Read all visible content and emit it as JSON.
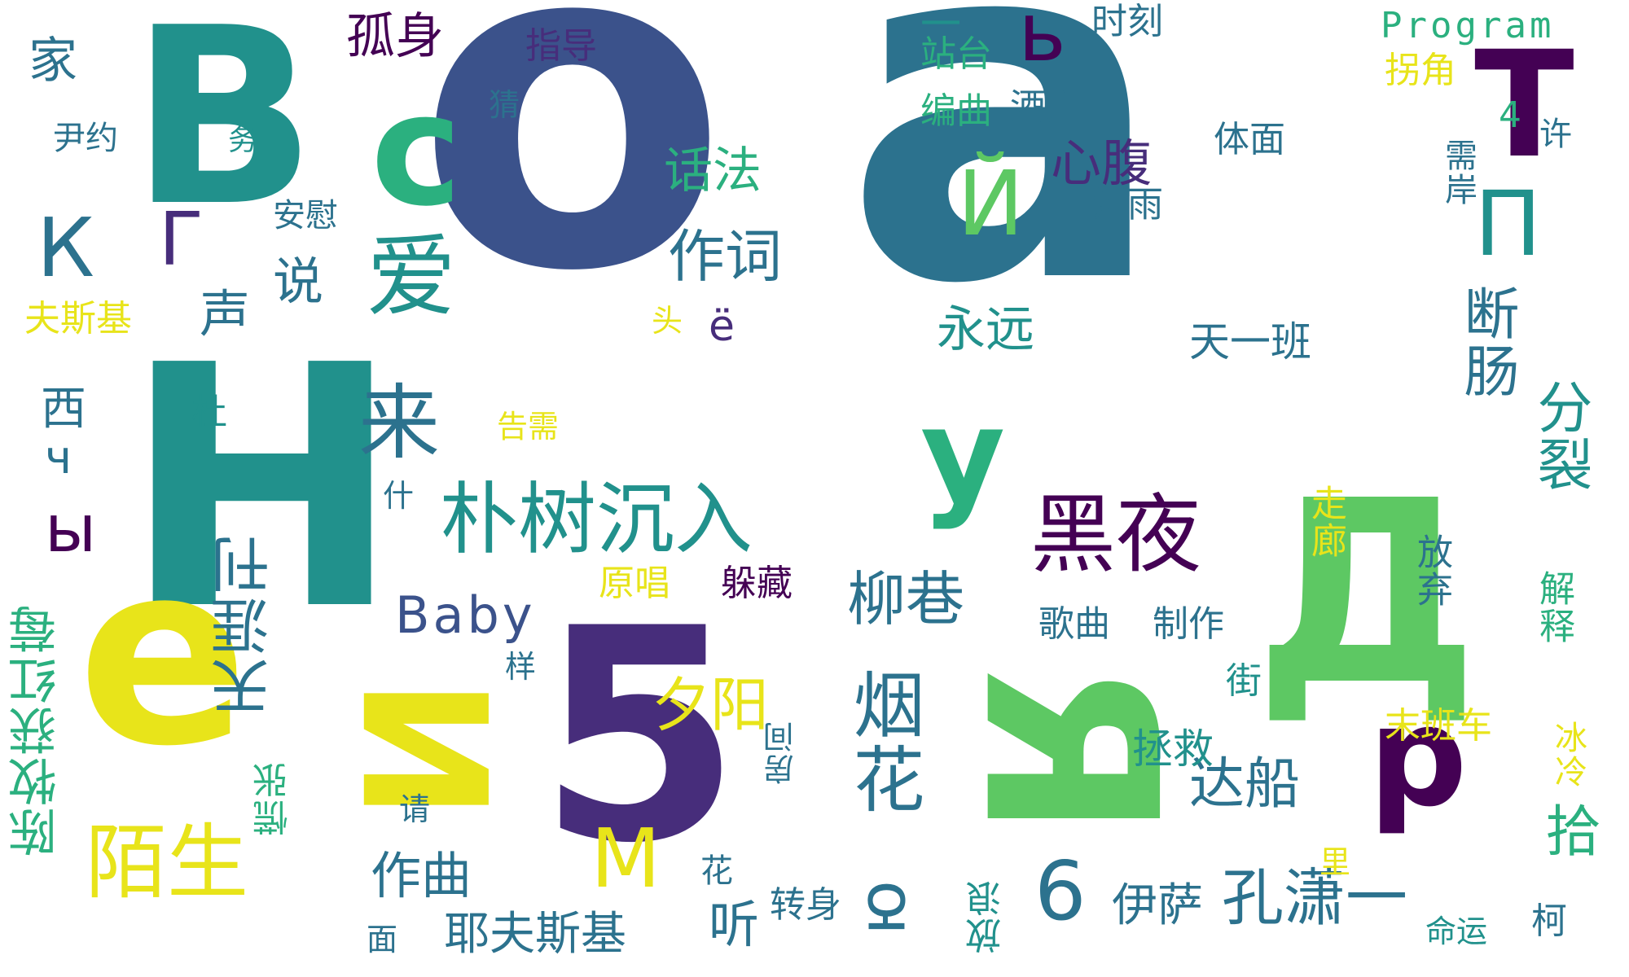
{
  "palette": {
    "yellow": "#e8e41a",
    "yellow_green": "#9bd93c",
    "green": "#5dc863",
    "aqua_green": "#2bb07f",
    "teal": "#21918c",
    "teal_blue": "#2c728e",
    "blue": "#3b528b",
    "indigo": "#472d7b",
    "dark_purple": "#440154"
  },
  "words": [
    {
      "id": "o",
      "text": "o",
      "color": "blue"
    },
    {
      "id": "a",
      "text": "a",
      "color": "teal_blue"
    },
    {
      "id": "H",
      "text": "H",
      "color": "teal"
    },
    {
      "id": "B",
      "text": "B",
      "color": "teal"
    },
    {
      "id": "e",
      "text": "e",
      "color": "yellow"
    },
    {
      "id": "five",
      "text": "5",
      "color": "indigo"
    },
    {
      "id": "de",
      "text": "Д",
      "color": "green"
    },
    {
      "id": "ya",
      "text": "Я",
      "color": "green"
    },
    {
      "id": "i_cyr",
      "text": "И",
      "color": "yellow"
    },
    {
      "id": "c",
      "text": "c",
      "color": "aqua_green"
    },
    {
      "id": "T",
      "text": "T",
      "color": "dark_purple"
    },
    {
      "id": "y",
      "text": "y",
      "color": "aqua_green"
    },
    {
      "id": "p",
      "text": "p",
      "color": "dark_purple"
    },
    {
      "id": "heiye",
      "text": "黑夜",
      "color": "dark_purple"
    },
    {
      "id": "pushu",
      "text": "朴树沉入",
      "color": "teal"
    },
    {
      "id": "mosheng",
      "text": "陌生",
      "color": "yellow"
    },
    {
      "id": "zuoci",
      "text": "作词",
      "color": "teal_blue"
    },
    {
      "id": "huafa",
      "text": "话法",
      "color": "aqua_green"
    },
    {
      "id": "xinfu",
      "text": "心腹",
      "color": "indigo"
    },
    {
      "id": "gushen",
      "text": "孤身",
      "color": "dark_purple"
    },
    {
      "id": "zhidao",
      "text": "指导",
      "color": "indigo"
    },
    {
      "id": "shike",
      "text": "时刻",
      "color": "teal_blue"
    },
    {
      "id": "program",
      "text": "Program",
      "color": "aqua_green"
    },
    {
      "id": "yi_top",
      "text": "一",
      "color": "teal"
    },
    {
      "id": "zhantai",
      "text": "站台",
      "color": "aqua_green"
    },
    {
      "id": "b_small",
      "text": "ь",
      "color": "dark_purple"
    },
    {
      "id": "bianqu",
      "text": "编曲",
      "color": "aqua_green"
    },
    {
      "id": "jiudian",
      "text": "酒店",
      "color": "teal_blue"
    },
    {
      "id": "guaijiao",
      "text": "拐角",
      "color": "yellow"
    },
    {
      "id": "tian",
      "text": "天",
      "color": "teal_blue"
    },
    {
      "id": "ti",
      "text": "体面",
      "color": "teal_blue"
    },
    {
      "id": "leiyu",
      "text": "泪雨",
      "color": "teal_blue"
    },
    {
      "id": "yongyuan",
      "text": "永远",
      "color": "teal"
    },
    {
      "id": "tianyiban",
      "text": "天一班",
      "color": "teal_blue"
    },
    {
      "id": "duanchang",
      "text": "断肠",
      "color": "teal_blue"
    },
    {
      "id": "fenlie",
      "text": "分裂",
      "color": "teal"
    },
    {
      "id": "ij",
      "text": "Й",
      "color": "green"
    },
    {
      "id": "pi",
      "text": "П",
      "color": "teal"
    },
    {
      "id": "jia",
      "text": "家",
      "color": "teal_blue"
    },
    {
      "id": "yinyue",
      "text": "尹约",
      "color": "teal_blue"
    },
    {
      "id": "wu",
      "text": "务",
      "color": "teal"
    },
    {
      "id": "cai",
      "text": "猜",
      "color": "teal_blue"
    },
    {
      "id": "ka",
      "text": "К",
      "color": "teal_blue"
    },
    {
      "id": "ge",
      "text": "Г",
      "color": "indigo"
    },
    {
      "id": "anwei",
      "text": "安慰",
      "color": "teal_blue"
    },
    {
      "id": "ai",
      "text": "爱",
      "color": "teal"
    },
    {
      "id": "sheng",
      "text": "声",
      "color": "teal_blue"
    },
    {
      "id": "shuo",
      "text": "说",
      "color": "teal_blue"
    },
    {
      "id": "fusiji",
      "text": "夫斯基",
      "color": "yellow"
    },
    {
      "id": "xi",
      "text": "西",
      "color": "teal_blue"
    },
    {
      "id": "ch",
      "text": "ч",
      "color": "teal_blue"
    },
    {
      "id": "yery",
      "text": "ы",
      "color": "dark_purple"
    },
    {
      "id": "du",
      "text": "杜",
      "color": "teal"
    },
    {
      "id": "gaobie",
      "text": "告需",
      "color": "yellow"
    },
    {
      "id": "shen",
      "text": "什",
      "color": "teal_blue"
    },
    {
      "id": "lai",
      "text": "来",
      "color": "teal_blue"
    },
    {
      "id": "tianyazhi",
      "text": "天涯刊",
      "color": "teal_blue"
    },
    {
      "id": "baby",
      "text": "Baby",
      "color": "blue"
    },
    {
      "id": "yuanchang",
      "text": "原唱",
      "color": "yellow"
    },
    {
      "id": "duocang",
      "text": "躲藏",
      "color": "dark_purple"
    },
    {
      "id": "liuxiang",
      "text": "柳巷",
      "color": "teal_blue"
    },
    {
      "id": "gequ",
      "text": "歌曲",
      "color": "teal_blue"
    },
    {
      "id": "zhizuo",
      "text": "制作",
      "color": "teal_blue"
    },
    {
      "id": "zoulang",
      "text": "走廊",
      "color": "yellow"
    },
    {
      "id": "fangqi",
      "text": "放弃",
      "color": "teal_blue"
    },
    {
      "id": "jieshi",
      "text": "解释",
      "color": "aqua_green"
    },
    {
      "id": "xuyan",
      "text": "需岸",
      "color": "teal_blue"
    },
    {
      "id": "four",
      "text": "4",
      "color": "aqua_green"
    },
    {
      "id": "xu",
      "text": "许",
      "color": "teal_blue"
    },
    {
      "id": "xiyang",
      "text": "夕阳",
      "color": "yellow"
    },
    {
      "id": "yanhua",
      "text": "烟花",
      "color": "teal_blue"
    },
    {
      "id": "dachuan",
      "text": "达船",
      "color": "teal_blue"
    },
    {
      "id": "shi",
      "text": "拾",
      "color": "aqua_green"
    },
    {
      "id": "mobanche",
      "text": "末班车",
      "color": "yellow"
    },
    {
      "id": "zhengjiu",
      "text": "拯救",
      "color": "teal"
    },
    {
      "id": "bingleng",
      "text": "冰冷",
      "color": "yellow"
    },
    {
      "id": "jie",
      "text": "街",
      "color": "teal"
    },
    {
      "id": "yang",
      "text": "样",
      "color": "teal_blue"
    },
    {
      "id": "chenmu",
      "text": "陈牧获红莓",
      "color": "aqua_green"
    },
    {
      "id": "huangzhang",
      "text": "慌张",
      "color": "aqua_green"
    },
    {
      "id": "qing",
      "text": "请",
      "color": "teal_blue"
    },
    {
      "id": "fangjian",
      "text": "房间",
      "color": "teal_blue"
    },
    {
      "id": "M",
      "text": "M",
      "color": "yellow"
    },
    {
      "id": "hua",
      "text": "花",
      "color": "teal_blue"
    },
    {
      "id": "zuoqu",
      "text": "作曲",
      "color": "teal_blue"
    },
    {
      "id": "yu",
      "text": "ю",
      "color": "teal_blue"
    },
    {
      "id": "six",
      "text": "6",
      "color": "teal_blue"
    },
    {
      "id": "yisa",
      "text": "伊萨",
      "color": "teal_blue"
    },
    {
      "id": "kongxiaoyi",
      "text": "孔潇一",
      "color": "teal_blue"
    },
    {
      "id": "li",
      "text": "里",
      "color": "yellow"
    },
    {
      "id": "mingyun",
      "text": "命运",
      "color": "teal"
    },
    {
      "id": "ke",
      "text": "柯",
      "color": "teal_blue"
    },
    {
      "id": "yefusiji",
      "text": "耶夫斯基",
      "color": "teal_blue"
    },
    {
      "id": "ting",
      "text": "听",
      "color": "teal_blue"
    },
    {
      "id": "zhuanshen",
      "text": "转身",
      "color": "teal_blue"
    },
    {
      "id": "fanglang",
      "text": "放浪",
      "color": "teal"
    },
    {
      "id": "mian",
      "text": "面",
      "color": "teal_blue"
    },
    {
      "id": "tou",
      "text": "头",
      "color": "yellow"
    },
    {
      "id": "yo",
      "text": "ё",
      "color": "indigo"
    }
  ]
}
